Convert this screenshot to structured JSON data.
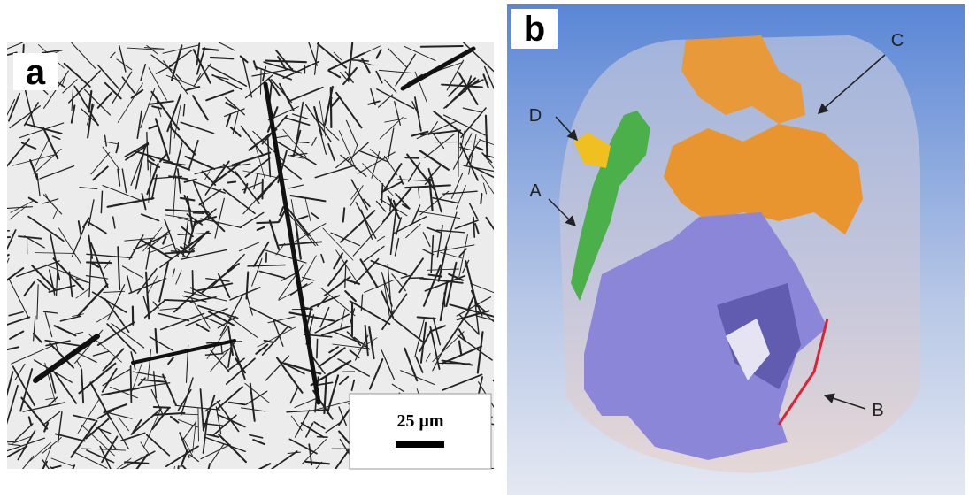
{
  "panel_a": {
    "label": "a",
    "scale_bar": "25 μm"
  },
  "panel_b": {
    "label": "b",
    "annotations": [
      "A",
      "B",
      "C",
      "D"
    ]
  }
}
